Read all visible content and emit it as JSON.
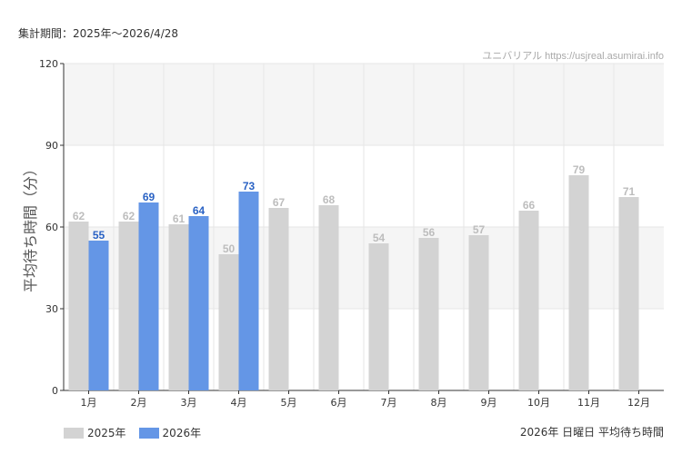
{
  "header": {
    "period": "集計期間：2025年～2026/4/28",
    "credit": "ユニバリアル  https://usjreal.asumirai.info"
  },
  "footer": {
    "title": "2026年 日曜日 平均待ち時間"
  },
  "chart_data": {
    "type": "bar",
    "title": "",
    "ylabel": "平均待ち時間（分）",
    "xlabel": "",
    "ylim": [
      0,
      120
    ],
    "yticks": [
      0,
      30,
      60,
      90,
      120
    ],
    "categories": [
      "1月",
      "2月",
      "3月",
      "4月",
      "5月",
      "6月",
      "7月",
      "8月",
      "9月",
      "10月",
      "11月",
      "12月"
    ],
    "series": [
      {
        "name": "2025年",
        "color": "#d3d3d3",
        "label_color": "#bdbdbd",
        "values": [
          62,
          62,
          61,
          50,
          67,
          68,
          54,
          56,
          57,
          66,
          79,
          71
        ]
      },
      {
        "name": "2026年",
        "color": "#6496e6",
        "label_color": "#2a62c4",
        "values": [
          55,
          69,
          64,
          73,
          null,
          null,
          null,
          null,
          null,
          null,
          null,
          null
        ]
      }
    ],
    "grid": true,
    "legend_position": "bottom-left",
    "band_colors": [
      "#f5f5f5",
      "#ffffff"
    ]
  }
}
